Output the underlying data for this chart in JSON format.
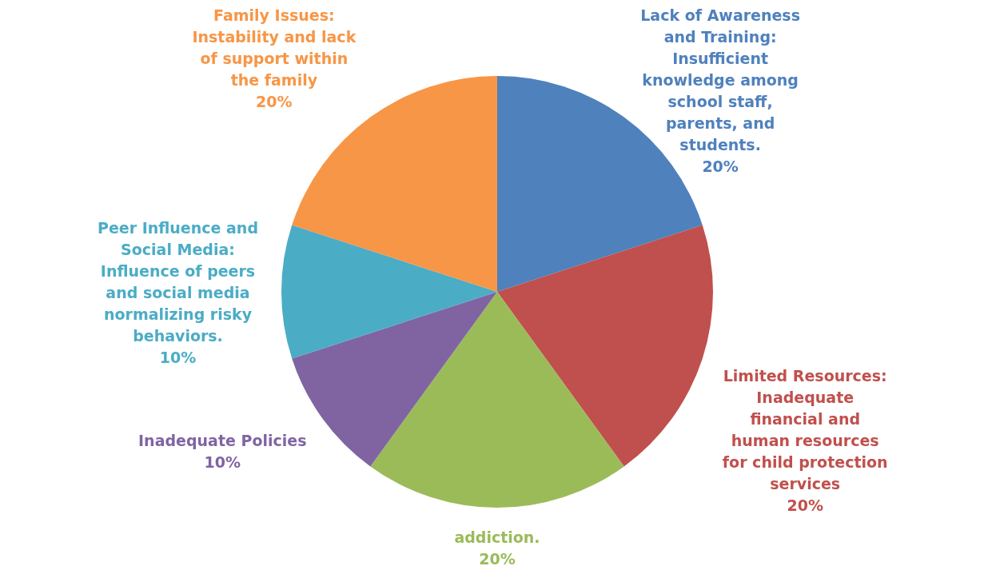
{
  "chart_data": {
    "type": "pie",
    "categories": [
      "Lack of Awareness and Training: Insufficient knowledge among school staff, parents, and students.",
      "Limited Resources: Inadequate financial and human resources for child protection services",
      "addiction.",
      "Inadequate Policies",
      "Peer Influence and Social Media: Influence of peers and social media normalizing risky behaviors.",
      "Family Issues: Instability and lack of support within the family"
    ],
    "values": [
      20,
      20,
      20,
      10,
      10,
      20
    ],
    "colors": [
      "#4f81bd",
      "#c0504d",
      "#9bbb59",
      "#8064a2",
      "#4bacc6",
      "#f79646"
    ],
    "value_labels": [
      "20%",
      "20%",
      "20%",
      "10%",
      "10%",
      "20%"
    ]
  }
}
